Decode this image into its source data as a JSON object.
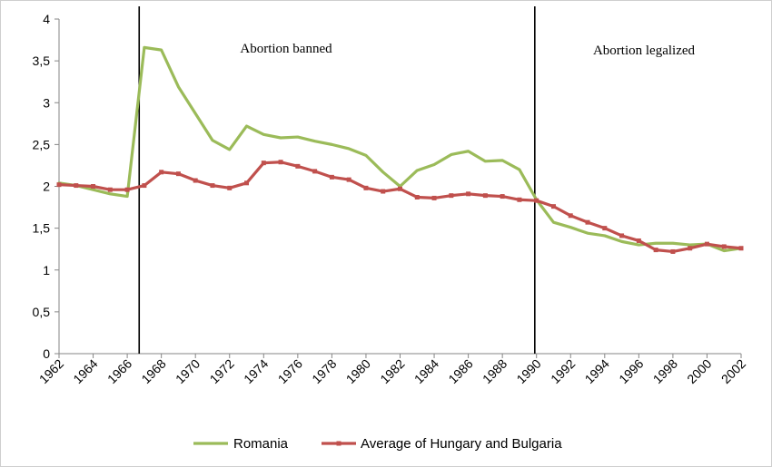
{
  "chart_data": {
    "type": "line",
    "title": "",
    "xlabel": "",
    "ylabel": "",
    "xlim": [
      1962,
      2002
    ],
    "ylim": [
      0,
      4
    ],
    "yticks": [
      0,
      0.5,
      1,
      1.5,
      2,
      2.5,
      3,
      3.5,
      4
    ],
    "ytick_labels": [
      "0",
      "0,5",
      "1",
      "1,5",
      "2",
      "2,5",
      "3",
      "3,5",
      "4"
    ],
    "xticks": [
      1962,
      1964,
      1966,
      1968,
      1970,
      1972,
      1974,
      1976,
      1978,
      1980,
      1982,
      1984,
      1986,
      1988,
      1990,
      1992,
      1994,
      1996,
      1998,
      2000,
      2002
    ],
    "xtick_labels": [
      "1962",
      "1964",
      "1966",
      "1968",
      "1970",
      "1972",
      "1974",
      "1976",
      "1978",
      "1980",
      "1982",
      "1984",
      "1986",
      "1988",
      "1990",
      "1992",
      "1994",
      "1996",
      "1998",
      "2000",
      "2002"
    ],
    "grid": false,
    "legend_position": "bottom",
    "x": [
      1962,
      1963,
      1964,
      1965,
      1966,
      1967,
      1968,
      1969,
      1970,
      1971,
      1972,
      1973,
      1974,
      1975,
      1976,
      1977,
      1978,
      1979,
      1980,
      1981,
      1982,
      1983,
      1984,
      1985,
      1986,
      1987,
      1988,
      1989,
      1990,
      1991,
      1992,
      1993,
      1994,
      1995,
      1996,
      1997,
      1998,
      1999,
      2000,
      2001,
      2002
    ],
    "series": [
      {
        "name": "Romania",
        "color": "#9bbb59",
        "marker": false,
        "values": [
          2.04,
          2.01,
          1.96,
          1.91,
          1.88,
          3.66,
          3.63,
          3.19,
          2.87,
          2.55,
          2.44,
          2.72,
          2.62,
          2.58,
          2.59,
          2.54,
          2.5,
          2.45,
          2.37,
          2.17,
          2.0,
          2.19,
          2.26,
          2.38,
          2.42,
          2.3,
          2.31,
          2.2,
          1.84,
          1.57,
          1.51,
          1.44,
          1.41,
          1.34,
          1.3,
          1.32,
          1.32,
          1.3,
          1.31,
          1.23,
          1.26
        ]
      },
      {
        "name": "Average of Hungary and Bulgaria",
        "color": "#c0504d",
        "marker": true,
        "values": [
          2.02,
          2.01,
          2.0,
          1.96,
          1.96,
          2.01,
          2.17,
          2.15,
          2.07,
          2.01,
          1.98,
          2.04,
          2.28,
          2.29,
          2.24,
          2.18,
          2.11,
          2.08,
          1.98,
          1.94,
          1.97,
          1.87,
          1.86,
          1.89,
          1.91,
          1.89,
          1.88,
          1.84,
          1.83,
          1.76,
          1.65,
          1.57,
          1.5,
          1.41,
          1.35,
          1.24,
          1.22,
          1.26,
          1.31,
          1.28,
          1.26
        ]
      }
    ],
    "vertical_lines": [
      {
        "x": 1966.7,
        "label": "Abortion banned"
      },
      {
        "x": 1989.9,
        "label": "Abortion legalized"
      }
    ]
  }
}
